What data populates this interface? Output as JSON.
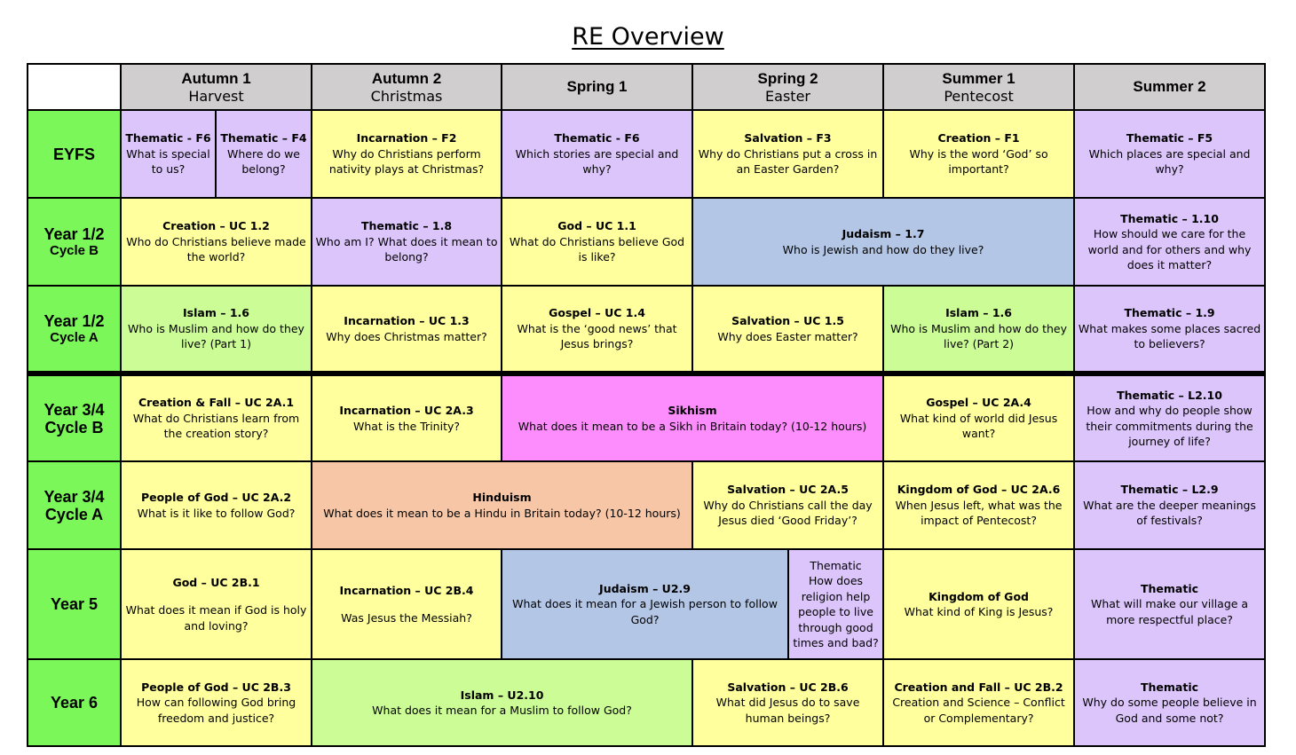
{
  "title": "RE Overview",
  "headers": [
    {
      "term": "Autumn 1",
      "festival": "Harvest"
    },
    {
      "term": "Autumn 2",
      "festival": "Christmas"
    },
    {
      "term": "Spring 1",
      "festival": ""
    },
    {
      "term": "Spring 2",
      "festival": "Easter"
    },
    {
      "term": "Summer 1",
      "festival": "Pentecost"
    },
    {
      "term": "Summer 2",
      "festival": ""
    }
  ],
  "colors": {
    "header": "#d0cece",
    "row_label": "#7cf75a",
    "yellow": "#ffff9e",
    "purple": "#dcc5fb",
    "light_green": "#ccfc96",
    "blue": "#b3c6e6",
    "pink": "#fd8cfd",
    "peach": "#f6c6a6"
  },
  "rows": {
    "eyfs": {
      "label": "EYFS",
      "sublabel": "",
      "cells": [
        {
          "title": "Thematic - F6",
          "question": "What is special to us?"
        },
        {
          "title": "Thematic – F4",
          "question": "Where do we belong?"
        },
        {
          "title": "Incarnation – F2",
          "question": "Why do Christians perform nativity plays at Christmas?"
        },
        {
          "title": "Thematic - F6",
          "question": "Which stories are special and why?"
        },
        {
          "title": "Salvation – F3",
          "question": "Why do Christians put a cross in an Easter Garden?"
        },
        {
          "title": "Creation – F1",
          "question": "Why is the word ‘God’ so important?"
        },
        {
          "title": "Thematic – F5",
          "question": "Which places are special and why?"
        }
      ]
    },
    "y12b": {
      "label": "Year 1/2",
      "sublabel": "Cycle B",
      "cells": [
        {
          "title": "Creation – UC 1.2",
          "question": "Who do Christians believe made the world?"
        },
        {
          "title": "Thematic – 1.8",
          "question": "Who am I? What does it mean to belong?"
        },
        {
          "title": "God – UC 1.1",
          "question": "What do Christians believe God is like?"
        },
        {
          "title": "Judaism – 1.7",
          "question": "Who is Jewish and how do they live?"
        },
        {
          "title": "Thematic – 1.10",
          "question": "How should we care for the world and for others and why does it matter?"
        }
      ]
    },
    "y12a": {
      "label": "Year 1/2",
      "sublabel": "Cycle A",
      "cells": [
        {
          "title": "Islam – 1.6",
          "question": "Who is Muslim and how do they live? (Part 1)"
        },
        {
          "title": "Incarnation – UC 1.3",
          "question": "Why does Christmas matter?"
        },
        {
          "title": "Gospel – UC 1.4",
          "question": "What is the ‘good news’ that Jesus brings?"
        },
        {
          "title": "Salvation – UC 1.5",
          "question": "Why does Easter matter?"
        },
        {
          "title": "Islam – 1.6",
          "question": "Who is Muslim and how do they live? (Part 2)"
        },
        {
          "title": "Thematic – 1.9",
          "question": "What makes some places sacred to believers?"
        }
      ]
    },
    "y34b": {
      "label": "Year 3/4",
      "sublabel": "Cycle B",
      "cells": [
        {
          "title": "Creation & Fall – UC 2A.1",
          "question": "What do Christians learn from the creation story?"
        },
        {
          "title": "Incarnation – UC 2A.3",
          "question": "What is the Trinity?"
        },
        {
          "title": "Sikhism",
          "question": "What does it mean to be a Sikh in Britain today? (10-12 hours)"
        },
        {
          "title": "Gospel – UC 2A.4",
          "question": "What kind of world did Jesus want?"
        },
        {
          "title": "Thematic – L2.10",
          "question": "How and why do people show their commitments during the journey of life?"
        }
      ]
    },
    "y34a": {
      "label": "Year 3/4",
      "sublabel": "Cycle A",
      "cells": [
        {
          "title": "People of God – UC 2A.2",
          "question": "What is it like to follow God?"
        },
        {
          "title": "Hinduism",
          "question": "What does it mean to be a Hindu in Britain today? (10-12 hours)"
        },
        {
          "title": "Salvation – UC 2A.5",
          "question": "Why do Christians call the day Jesus died ‘Good Friday’?"
        },
        {
          "title": "Kingdom of God – UC 2A.6",
          "question": "When Jesus left, what was the impact of Pentecost?"
        },
        {
          "title": "Thematic – L2.9",
          "question": "What are the deeper meanings of festivals?"
        }
      ]
    },
    "y5": {
      "label": "Year 5",
      "sublabel": "",
      "cells": [
        {
          "title": "God – UC 2B.1",
          "question": "What does it mean if God is holy and loving?"
        },
        {
          "title": "Incarnation – UC 2B.4",
          "question": "Was Jesus the Messiah?"
        },
        {
          "title": "Judaism – U2.9",
          "question": "What does it mean for a Jewish person to follow God?"
        },
        {
          "title": "Thematic",
          "question": "How does religion help people to live through good times and bad?"
        },
        {
          "title": "Kingdom of God",
          "question": "What kind of King is Jesus?"
        },
        {
          "title": "Thematic",
          "question": "What will make our village a more respectful place?"
        }
      ]
    },
    "y6": {
      "label": "Year 6",
      "sublabel": "",
      "cells": [
        {
          "title": "People of God – UC 2B.3",
          "question": "How can following God bring freedom and justice?"
        },
        {
          "title": "Islam – U2.10",
          "question": "What does it mean for a Muslim to follow God?"
        },
        {
          "title": "Salvation – UC 2B.6",
          "question": "What did Jesus do to save human beings?"
        },
        {
          "title": "Creation and Fall – UC 2B.2",
          "question": "Creation and Science – Conflict or Complementary?"
        },
        {
          "title": "Thematic",
          "question": "Why do some people believe in God and some not?"
        }
      ]
    }
  }
}
